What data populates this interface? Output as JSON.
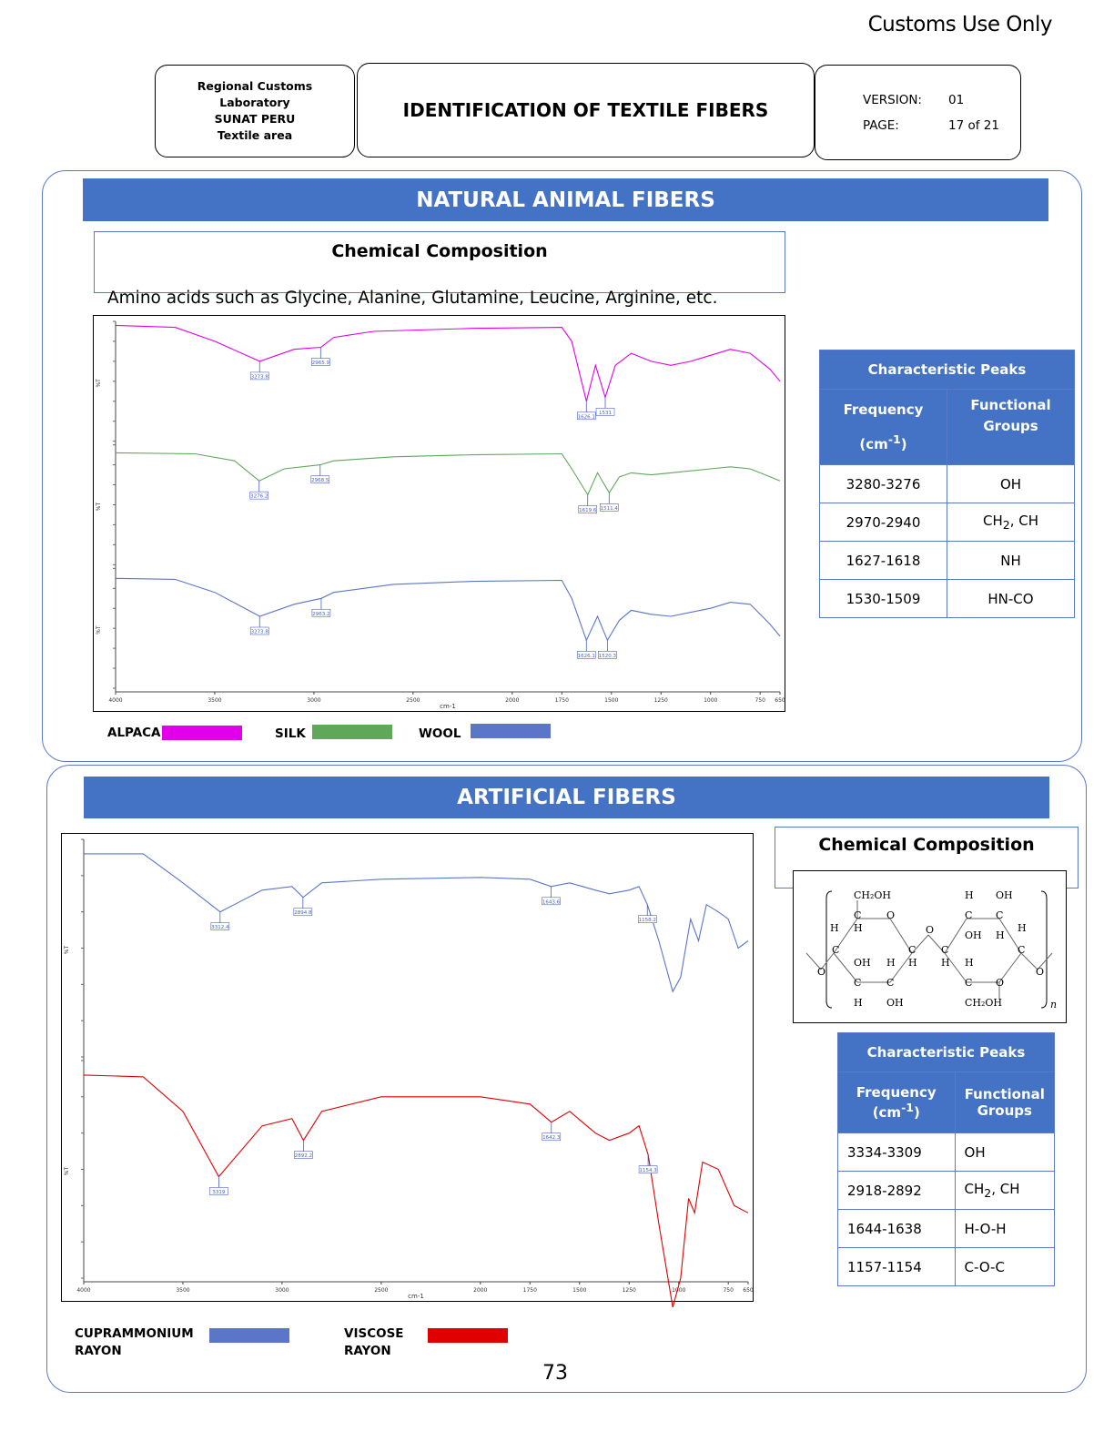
{
  "header": {
    "customs_use": "Customs Use Only",
    "lab_lines": [
      "Regional Customs",
      "Laboratory",
      "SUNAT PERU",
      "Textile area"
    ],
    "doc_title": "IDENTIFICATION OF TEXTILE FIBERS",
    "version_label": "VERSION:",
    "version_value": "01",
    "page_label": "PAGE:",
    "page_value": "17 of 21"
  },
  "natural": {
    "banner": "NATURAL ANIMAL FIBERS",
    "chem_title": "Chemical Composition",
    "chem_text": "Amino acids such as Glycine, Alanine, Glutamine, Leucine, Arginine, etc.",
    "legend": [
      {
        "label": "ALPACA",
        "color": "#e100e9"
      },
      {
        "label": "SILK",
        "color": "#5fa85a"
      },
      {
        "label": "WOOL",
        "color": "#5b75c8"
      }
    ],
    "peaks": {
      "title": "Characteristic Peaks",
      "col1": "Frequency",
      "col1_unit": "(cm-1)",
      "col2": "Functional Groups",
      "rows": [
        [
          "3280-3276",
          "OH"
        ],
        [
          "2970-2940",
          "CH2, CH"
        ],
        [
          "1627-1618",
          "NH"
        ],
        [
          "1530-1509",
          "HN-CO"
        ]
      ]
    }
  },
  "artificial": {
    "banner": "ARTIFICIAL FIBERS",
    "chem_title": "Chemical Composition",
    "legend": [
      {
        "label": "CUPRAMMONIUM RAYON",
        "color": "#5b75c8"
      },
      {
        "label": "VISCOSE RAYON",
        "color": "#e00000"
      }
    ],
    "peaks": {
      "title": "Characteristic Peaks",
      "col1": "Frequency (cm-1)",
      "col2": "Functional Groups",
      "rows": [
        [
          "3334-3309",
          "OH"
        ],
        [
          "2918-2892",
          "CH2, CH"
        ],
        [
          "1644-1638",
          "H-O-H"
        ],
        [
          "1157-1154",
          "C-O-C"
        ]
      ]
    }
  },
  "page_number": "73",
  "chart_data": [
    {
      "type": "line",
      "xlabel": "cm-1",
      "ylabel": "%T",
      "xlim": [
        4000,
        650
      ],
      "x_ticks": [
        4000,
        3500,
        3000,
        2500,
        2000,
        1750,
        1500,
        1250,
        1000,
        750,
        650
      ],
      "series": [
        {
          "name": "ALPACA",
          "color": "#e100e9",
          "labels": [
            "3273.8",
            "2965.9",
            "1626.1",
            "1531"
          ],
          "points": [
            [
              4000,
              98
            ],
            [
              3700,
              97
            ],
            [
              3500,
              90
            ],
            [
              3273,
              80
            ],
            [
              3100,
              86
            ],
            [
              2965,
              87
            ],
            [
              2900,
              92
            ],
            [
              2700,
              95
            ],
            [
              2200,
              96.5
            ],
            [
              1750,
              97
            ],
            [
              1700,
              90
            ],
            [
              1626,
              60
            ],
            [
              1580,
              78
            ],
            [
              1531,
              62
            ],
            [
              1480,
              78
            ],
            [
              1400,
              84
            ],
            [
              1300,
              80
            ],
            [
              1200,
              78
            ],
            [
              1100,
              80
            ],
            [
              1000,
              83
            ],
            [
              900,
              86
            ],
            [
              800,
              84
            ],
            [
              700,
              76
            ],
            [
              650,
              70
            ]
          ]
        },
        {
          "name": "SILK",
          "color": "#5fa85a",
          "labels": [
            "3276.2",
            "2968.5",
            "1619.6",
            "1511.4"
          ],
          "points": [
            [
              4000,
              96
            ],
            [
              3600,
              95.5
            ],
            [
              3400,
              92
            ],
            [
              3276,
              82
            ],
            [
              3150,
              88
            ],
            [
              2968,
              90
            ],
            [
              2900,
              92
            ],
            [
              2600,
              94
            ],
            [
              2200,
              95
            ],
            [
              1750,
              95.5
            ],
            [
              1700,
              88
            ],
            [
              1619,
              75
            ],
            [
              1570,
              86
            ],
            [
              1511,
              76
            ],
            [
              1460,
              84
            ],
            [
              1400,
              86
            ],
            [
              1300,
              85
            ],
            [
              1200,
              86
            ],
            [
              1100,
              87
            ],
            [
              1000,
              88
            ],
            [
              900,
              89
            ],
            [
              800,
              88
            ],
            [
              700,
              84
            ],
            [
              650,
              82
            ]
          ]
        },
        {
          "name": "WOOL",
          "color": "#5b75c8",
          "labels": [
            "3273.8",
            "2963.2",
            "1626.1",
            "1520.3"
          ],
          "points": [
            [
              4000,
              95
            ],
            [
              3700,
              94.5
            ],
            [
              3500,
              88
            ],
            [
              3273,
              76
            ],
            [
              3100,
              82
            ],
            [
              2963,
              85
            ],
            [
              2900,
              88
            ],
            [
              2600,
              92
            ],
            [
              2200,
              93.5
            ],
            [
              1750,
              94
            ],
            [
              1700,
              85
            ],
            [
              1626,
              64
            ],
            [
              1570,
              76
            ],
            [
              1520,
              64
            ],
            [
              1460,
              74
            ],
            [
              1400,
              79
            ],
            [
              1300,
              77
            ],
            [
              1200,
              76
            ],
            [
              1100,
              78
            ],
            [
              1000,
              80
            ],
            [
              900,
              83
            ],
            [
              800,
              82
            ],
            [
              700,
              72
            ],
            [
              650,
              66
            ]
          ]
        }
      ]
    },
    {
      "type": "line",
      "xlabel": "cm-1",
      "ylabel": "%T",
      "xlim": [
        4000,
        650
      ],
      "x_ticks": [
        4000,
        3500,
        3000,
        2500,
        2000,
        1750,
        1500,
        1250,
        1000,
        750,
        650
      ],
      "series": [
        {
          "name": "CUPRAMMONIUM RAYON",
          "color": "#5b75c8",
          "labels": [
            "3312.4",
            "2894.8",
            "1643.6",
            "1158.2"
          ],
          "points": [
            [
              4000,
              96
            ],
            [
              3700,
              96
            ],
            [
              3500,
              88
            ],
            [
              3312,
              80
            ],
            [
              3100,
              86
            ],
            [
              2950,
              87
            ],
            [
              2894,
              84
            ],
            [
              2800,
              88
            ],
            [
              2500,
              89
            ],
            [
              2000,
              89.5
            ],
            [
              1750,
              89
            ],
            [
              1643,
              87
            ],
            [
              1550,
              88
            ],
            [
              1420,
              86
            ],
            [
              1350,
              85
            ],
            [
              1250,
              86
            ],
            [
              1200,
              87
            ],
            [
              1158,
              82
            ],
            [
              1100,
              72
            ],
            [
              1030,
              58
            ],
            [
              990,
              62
            ],
            [
              940,
              78
            ],
            [
              900,
              72
            ],
            [
              860,
              82
            ],
            [
              800,
              80
            ],
            [
              750,
              78
            ],
            [
              700,
              70
            ],
            [
              650,
              72
            ]
          ]
        },
        {
          "name": "VISCOSE RAYON",
          "color": "#e00000",
          "labels": [
            "3319",
            "2892.2",
            "1642.3",
            "1154.3"
          ],
          "points": [
            [
              4000,
              96
            ],
            [
              3700,
              95.5
            ],
            [
              3500,
              86
            ],
            [
              3319,
              68
            ],
            [
              3100,
              82
            ],
            [
              2950,
              84
            ],
            [
              2892,
              78
            ],
            [
              2800,
              86
            ],
            [
              2500,
              90
            ],
            [
              2000,
              90
            ],
            [
              1750,
              88
            ],
            [
              1642,
              83
            ],
            [
              1550,
              86
            ],
            [
              1420,
              80
            ],
            [
              1350,
              78
            ],
            [
              1250,
              80
            ],
            [
              1200,
              82
            ],
            [
              1154,
              74
            ],
            [
              1100,
              55
            ],
            [
              1030,
              32
            ],
            [
              990,
              40
            ],
            [
              950,
              62
            ],
            [
              920,
              58
            ],
            [
              880,
              72
            ],
            [
              800,
              70
            ],
            [
              720,
              60
            ],
            [
              650,
              58
            ]
          ]
        }
      ]
    }
  ]
}
